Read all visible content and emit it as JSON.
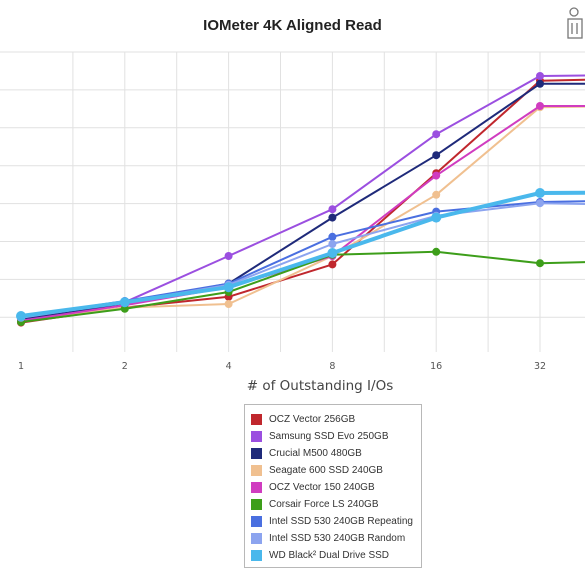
{
  "chart_data": {
    "type": "line",
    "title": "IOMeter 4K Aligned Read",
    "xlabel": "# of Outstanding I/Os",
    "ylabel": "",
    "x_scale": "log2",
    "x": [
      1,
      2,
      4,
      8,
      16,
      32,
      64
    ],
    "x_ticks": [
      "1",
      "2",
      "4",
      "8",
      "16",
      "32"
    ],
    "grid": true,
    "legend_position": "bottom-center",
    "series": [
      {
        "name": "OCZ Vector 256GB",
        "color": "#c0272d",
        "values": [
          4.9,
          7.4,
          9.2,
          14.6,
          29.8,
          45.2,
          45.6
        ]
      },
      {
        "name": "Samsung SSD Evo 250GB",
        "color": "#9b4fe0",
        "values": [
          5.6,
          8.3,
          16.0,
          23.8,
          36.3,
          46.0,
          46.2
        ]
      },
      {
        "name": "Crucial M500 480GB",
        "color": "#1f2a7a",
        "values": [
          5.4,
          8.1,
          11.4,
          22.4,
          32.8,
          44.7,
          44.7
        ]
      },
      {
        "name": "Seagate 600 SSD 240GB",
        "color": "#f0c090",
        "values": [
          5.2,
          7.4,
          8.0,
          16.0,
          26.2,
          40.8,
          41.0
        ]
      },
      {
        "name": "OCZ Vector 150 240GB",
        "color": "#d03cc0",
        "values": [
          5.2,
          7.8,
          10.8,
          16.0,
          29.4,
          41.0,
          41.0
        ]
      },
      {
        "name": "Corsair Force LS 240GB",
        "color": "#3d9e1a",
        "values": [
          5.0,
          7.2,
          10.0,
          16.2,
          16.7,
          14.8,
          15.2
        ]
      },
      {
        "name": "Intel SSD 530 240GB Repeating",
        "color": "#4a6fe0",
        "values": [
          5.9,
          8.5,
          11.4,
          19.2,
          23.4,
          25.0,
          25.3
        ]
      },
      {
        "name": "Intel SSD 530 240GB Random",
        "color": "#8ca4ef",
        "values": [
          5.7,
          8.3,
          11.2,
          18.0,
          22.7,
          24.8,
          24.5
        ]
      },
      {
        "name": "WD Black² Dual Drive SSD",
        "color": "#4ab8ec",
        "values": [
          6.0,
          8.3,
          10.8,
          16.5,
          22.4,
          26.5,
          26.6
        ]
      }
    ],
    "legend": [
      "OCZ Vector 256GB",
      "Samsung SSD Evo 250GB",
      "Crucial M500 480GB",
      "Seagate 600 SSD 240GB",
      "OCZ Vector 150 240GB",
      "Corsair Force LS 240GB",
      "Intel SSD 530 240GB Repeating",
      "Intel SSD 530 240GB Random",
      "WD Black² Dual Drive SSD"
    ]
  },
  "icons": {
    "corner": "info-figure-icon"
  }
}
